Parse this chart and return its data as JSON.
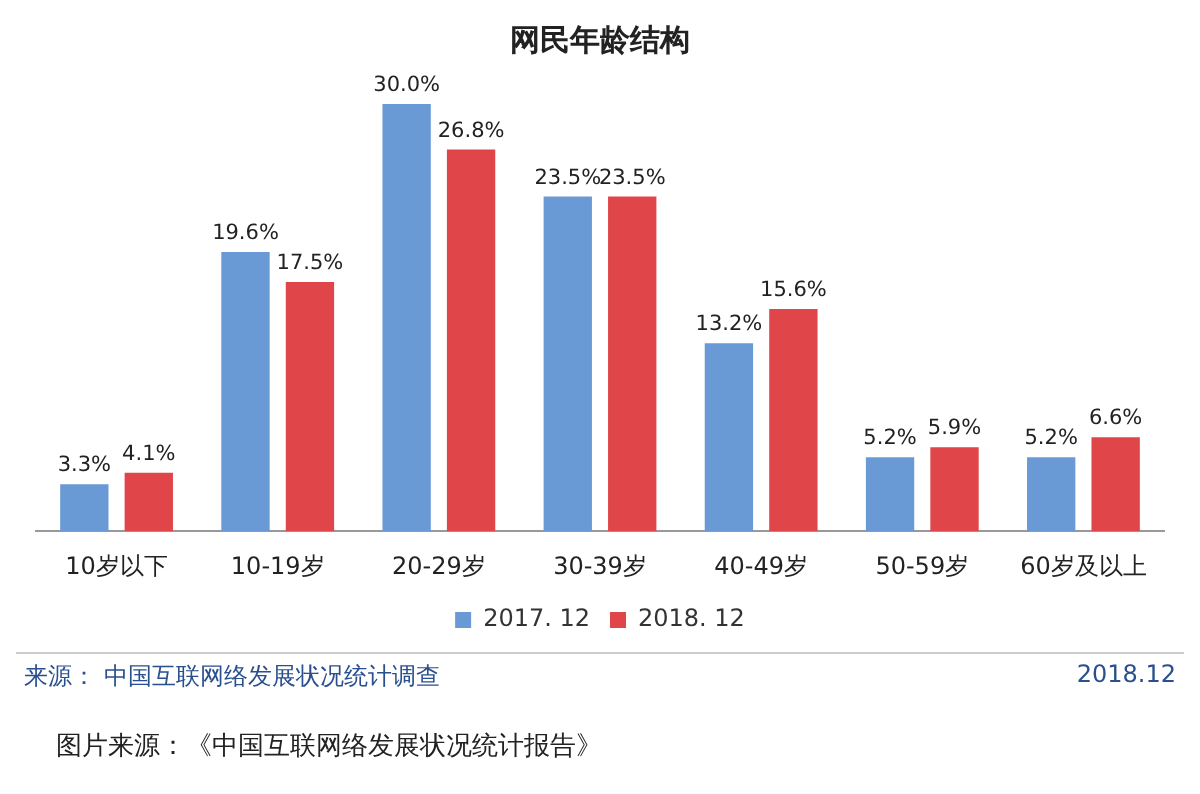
{
  "chart_data": {
    "type": "bar",
    "title": "网民年龄结构",
    "categories": [
      "10岁以下",
      "10-19岁",
      "20-29岁",
      "30-39岁",
      "40-49岁",
      "50-59岁",
      "60岁及以上"
    ],
    "series": [
      {
        "name": "2017. 12",
        "color": "#6a9ad6",
        "values": [
          3.3,
          19.6,
          30.0,
          23.5,
          13.2,
          5.2,
          5.2
        ],
        "value_labels": [
          "3.3%",
          "19.6%",
          "30.0%",
          "23.5%",
          "13.2%",
          "5.2%",
          "5.2%"
        ]
      },
      {
        "name": "2018. 12",
        "color": "#e0454a",
        "values": [
          4.1,
          17.5,
          26.8,
          23.5,
          15.6,
          5.9,
          6.6
        ],
        "value_labels": [
          "4.1%",
          "17.5%",
          "26.8%",
          "23.5%",
          "15.6%",
          "5.9%",
          "6.6%"
        ]
      }
    ],
    "legend": "bottom",
    "annotations": [
      "来源： 中国互联网络发展状况统计调查",
      "2018.12",
      "图片来源：《中国互联网络发展状况统计报告》"
    ]
  }
}
